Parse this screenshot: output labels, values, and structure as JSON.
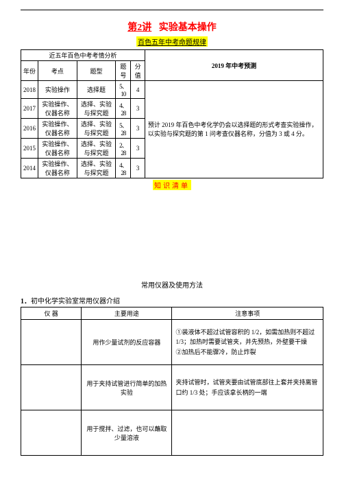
{
  "title": {
    "lecture": "第2讲",
    "main": "实验基本操作"
  },
  "subtitle": "百色五年中考命题规律",
  "table1": {
    "analysis_header": "近五年百色中考考情分析",
    "predict_header_year": "2019",
    "predict_header_rest": " 年中考预测",
    "cols": {
      "year": "年份",
      "point": "考点",
      "type": "题型",
      "qno": "题号",
      "score": "分值"
    },
    "rows": [
      {
        "year": "2018",
        "point": "实验操作",
        "type": "选择题",
        "qno": "5、10",
        "score": "4"
      },
      {
        "year": "2017",
        "point": "实验操作、仪器名称",
        "type": "选择、实验与探究题",
        "qno": "4、28",
        "score": "3"
      },
      {
        "year": "2016",
        "point": "实验操作、仪器名称",
        "type": "选择、实验与探究题",
        "qno": "5、28",
        "score": "3"
      },
      {
        "year": "2015",
        "point": "实验操作、仪器名称",
        "type": "选择、实验与探究题",
        "qno": "2、28",
        "score": "3"
      },
      {
        "year": "2014",
        "point": "实验操作、仪器名称",
        "type": "选择、实验与探究题",
        "qno": "4、28",
        "score": "3"
      }
    ],
    "predict": {
      "p1": "预计 2019 年百色中考化学仍会以选择题的形式考查实验操作，以实验与探究题的第 1 问考查仪器名称，分值为 3 或 4 分。"
    }
  },
  "zhishi": "知识清单",
  "section2_title": "常用仪器及使用方法",
  "list_lead_num": "1．",
  "list_lead_text": "初中化学实验室常用仪器介绍",
  "table2": {
    "cols": {
      "instrument": "仪  器",
      "use": "主要用途",
      "note": "注意事项"
    },
    "rows": [
      {
        "instrument": "",
        "use": "用作少量试剂的反应容器",
        "note": "①装液体不超过试管容积的 1/2，如需加热则不超过 1/3；加热时需要试管夹，并先预热，外壁要干燥\n②加热后不能骤冷，防止炸裂"
      },
      {
        "instrument": "",
        "use": "用于夹持试管进行简单的加热实验",
        "note": "夹持试管时，试管夹要由试管底部往上套并夹持离管口约 1/3 处；手应该拿长柄的一端"
      },
      {
        "instrument": "",
        "use": "用于搅拌、过滤，也可以蘸取少量溶液",
        "note": ""
      }
    ]
  }
}
